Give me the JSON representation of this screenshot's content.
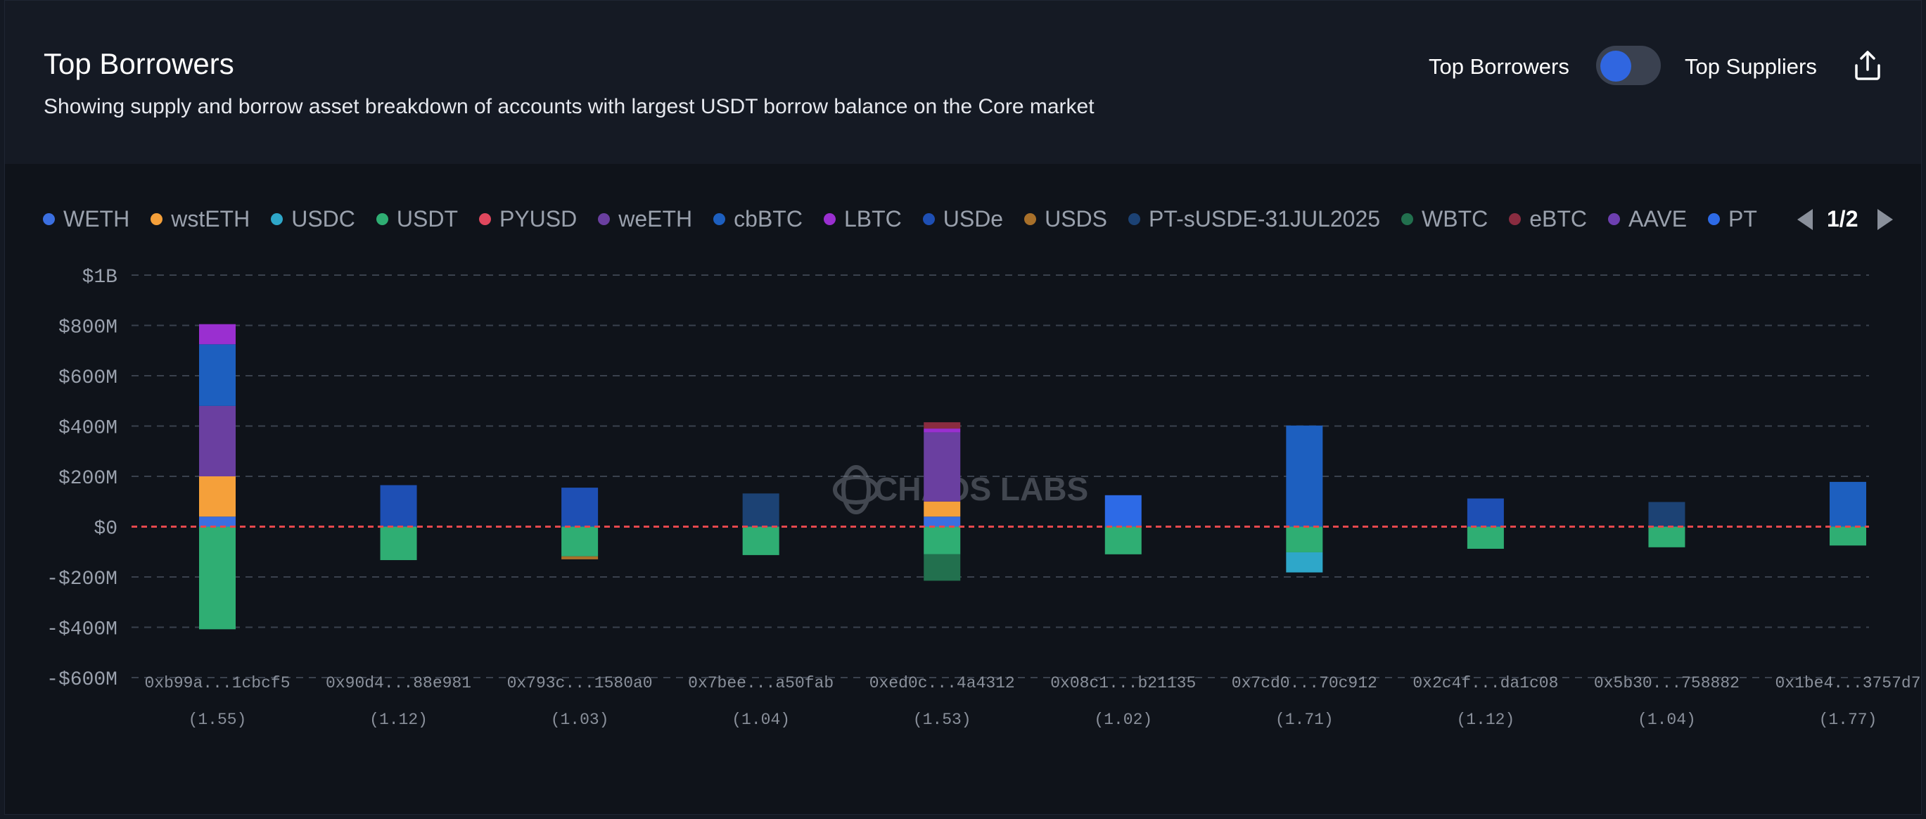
{
  "header": {
    "title": "Top Borrowers",
    "subtitle": "Showing supply and borrow asset breakdown of accounts with largest USDT borrow balance on the Core market",
    "toggle_left": "Top Borrowers",
    "toggle_right": "Top Suppliers",
    "toggle_active": "Top Borrowers",
    "share_icon": "share-icon"
  },
  "pager": {
    "text": "1/2",
    "prev_icon": "chevron-left-icon",
    "next_icon": "chevron-right-icon"
  },
  "watermark": "CHAOS LABS",
  "chart_data": {
    "type": "bar",
    "stacked": true,
    "ylim": [
      -600000000,
      1000000000
    ],
    "yticks": [
      1000000000,
      800000000,
      600000000,
      400000000,
      200000000,
      0,
      -200000000,
      -400000000,
      -600000000
    ],
    "ytick_labels": [
      "$1B",
      "$800M",
      "$600M",
      "$400M",
      "$200M",
      "$0",
      "-$200M",
      "-$400M",
      "-$600M"
    ],
    "grid": true,
    "zero_line_color": "#e5484d",
    "legend_position": "top",
    "legend": [
      {
        "name": "WETH",
        "color": "#3b6fe0"
      },
      {
        "name": "wstETH",
        "color": "#f5a03a"
      },
      {
        "name": "USDC",
        "color": "#2ea7c9"
      },
      {
        "name": "USDT",
        "color": "#2fae73"
      },
      {
        "name": "PYUSD",
        "color": "#e0475d"
      },
      {
        "name": "weETH",
        "color": "#6a3fa0"
      },
      {
        "name": "cbBTC",
        "color": "#1d5fbf"
      },
      {
        "name": "LBTC",
        "color": "#9a2fd0"
      },
      {
        "name": "USDe",
        "color": "#1e4fb4"
      },
      {
        "name": "USDS",
        "color": "#a8702a"
      },
      {
        "name": "PT-sUSDE-31JUL2025",
        "color": "#1c4274"
      },
      {
        "name": "WBTC",
        "color": "#22704e"
      },
      {
        "name": "eBTC",
        "color": "#8a2c40"
      },
      {
        "name": "AAVE",
        "color": "#6d3fb0"
      },
      {
        "name": "PT",
        "color": "#2d6ae6"
      }
    ],
    "categories": [
      "0xb99a...1cbcf5",
      "0x90d4...88e981",
      "0x793c...1580a0",
      "0x7bee...a50fab",
      "0xed0c...4a4312",
      "0x08c1...b21135",
      "0x7cd0...70c912",
      "0x2c4f...da1c08",
      "0x5b30...758882",
      "0x1be4...3757d7"
    ],
    "health_factors": [
      "(1.55)",
      "(1.12)",
      "(1.03)",
      "(1.04)",
      "(1.53)",
      "(1.02)",
      "(1.71)",
      "(1.12)",
      "(1.04)",
      "(1.77)"
    ],
    "series": [
      {
        "name": "WETH",
        "color": "#3b6fe0",
        "values": [
          40000000,
          0,
          0,
          0,
          40000000,
          0,
          0,
          0,
          0,
          0
        ]
      },
      {
        "name": "wstETH",
        "color": "#f5a03a",
        "values": [
          160000000,
          0,
          0,
          0,
          60000000,
          0,
          0,
          0,
          0,
          0
        ]
      },
      {
        "name": "USDC",
        "color": "#2ea7c9",
        "values": [
          0,
          0,
          0,
          0,
          0,
          0,
          0,
          0,
          0,
          0
        ]
      },
      {
        "name": "weETH",
        "color": "#6a3fa0",
        "values": [
          280000000,
          0,
          0,
          0,
          275000000,
          0,
          0,
          0,
          0,
          0
        ]
      },
      {
        "name": "cbBTC",
        "color": "#1d5fbf",
        "values": [
          245000000,
          0,
          0,
          0,
          0,
          0,
          402000000,
          0,
          0,
          178000000
        ]
      },
      {
        "name": "LBTC",
        "color": "#9a2fd0",
        "values": [
          80000000,
          0,
          0,
          0,
          15000000,
          0,
          0,
          0,
          0,
          0
        ]
      },
      {
        "name": "USDe",
        "color": "#1e4fb4",
        "values": [
          0,
          165000000,
          155000000,
          0,
          0,
          0,
          0,
          112000000,
          0,
          0
        ]
      },
      {
        "name": "PT-sUSDE-31JUL2025",
        "color": "#1c4274",
        "values": [
          0,
          0,
          0,
          132000000,
          0,
          0,
          0,
          0,
          98000000,
          0
        ]
      },
      {
        "name": "eBTC",
        "color": "#8a2c40",
        "values": [
          0,
          0,
          0,
          0,
          25000000,
          0,
          0,
          0,
          0,
          0
        ]
      },
      {
        "name": "PT",
        "color": "#2d6ae6",
        "values": [
          0,
          0,
          0,
          0,
          0,
          125000000,
          0,
          0,
          0,
          0
        ]
      },
      {
        "name": "USDT",
        "color": "#2fae73",
        "values": [
          -408000000,
          -133000000,
          -118000000,
          -113000000,
          -110000000,
          -110000000,
          -102000000,
          -88000000,
          -82000000,
          -75000000
        ]
      },
      {
        "name": "USDC",
        "color": "#2ea7c9",
        "values": [
          0,
          0,
          0,
          0,
          0,
          0,
          -80000000,
          0,
          0,
          0
        ]
      },
      {
        "name": "USDS",
        "color": "#a8702a",
        "values": [
          0,
          0,
          -12000000,
          0,
          0,
          0,
          0,
          0,
          0,
          0
        ]
      },
      {
        "name": "WBTC",
        "color": "#22704e",
        "values": [
          0,
          0,
          0,
          0,
          -105000000,
          0,
          0,
          0,
          0,
          0
        ]
      }
    ]
  }
}
